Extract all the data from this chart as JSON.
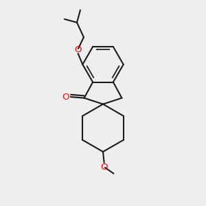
{
  "background_color": "#eeeeee",
  "line_color": "#1a1a1a",
  "oxygen_color": "#ff0000",
  "line_width": 1.5,
  "figsize": [
    3.0,
    3.0
  ],
  "dpi": 100,
  "xlim": [
    0.2,
    0.8
  ],
  "ylim": [
    0.05,
    0.95
  ]
}
